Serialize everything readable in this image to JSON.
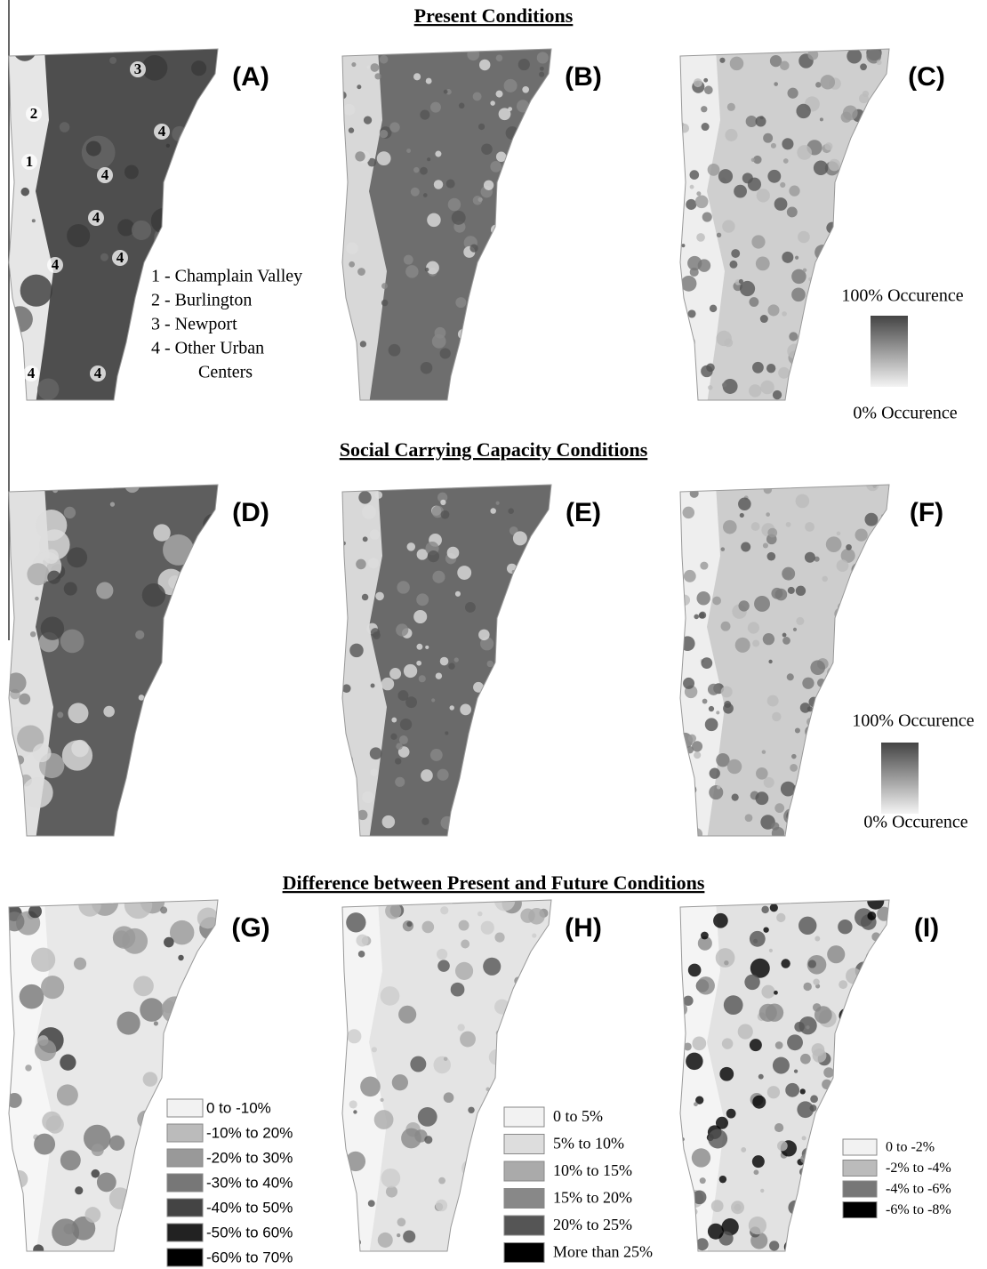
{
  "sections": [
    {
      "title": "Present Conditions",
      "panels": [
        "(A)",
        "(B)",
        "(C)"
      ]
    },
    {
      "title": "Social Carrying Capacity Conditions",
      "panels": [
        "(D)",
        "(E)",
        "(F)"
      ]
    },
    {
      "title": "Difference between Present and Future Conditions",
      "panels": [
        "(G)",
        "(H)",
        "(I)"
      ]
    }
  ],
  "map_a_markers": [
    "3",
    "2",
    "4",
    "1",
    "4",
    "4",
    "4",
    "4",
    "4",
    "4"
  ],
  "map_a_key": [
    "1 - Champlain Valley",
    "2 - Burlington",
    "3 - Newport",
    "4 - Other Urban",
    "Centers"
  ],
  "occurrence_legends": [
    {
      "top": "100% Occurence",
      "bottom": "0% Occurence"
    },
    {
      "top": "100% Occurence",
      "bottom": "0% Occurence"
    }
  ],
  "difference_legends": [
    [
      "0 to -10%",
      "-10% to 20%",
      "-20% to 30%",
      "-30% to 40%",
      "-40% to 50%",
      "-50% to 60%",
      "-60% to 70%"
    ],
    [
      "0 to 5%",
      "5% to 10%",
      "10% to 15%",
      "15% to 20%",
      "20% to 25%",
      "More than 25%"
    ],
    [
      "0 to -2%",
      "-2% to -4%",
      "-4% to -6%",
      "-6% to -8%"
    ]
  ]
}
